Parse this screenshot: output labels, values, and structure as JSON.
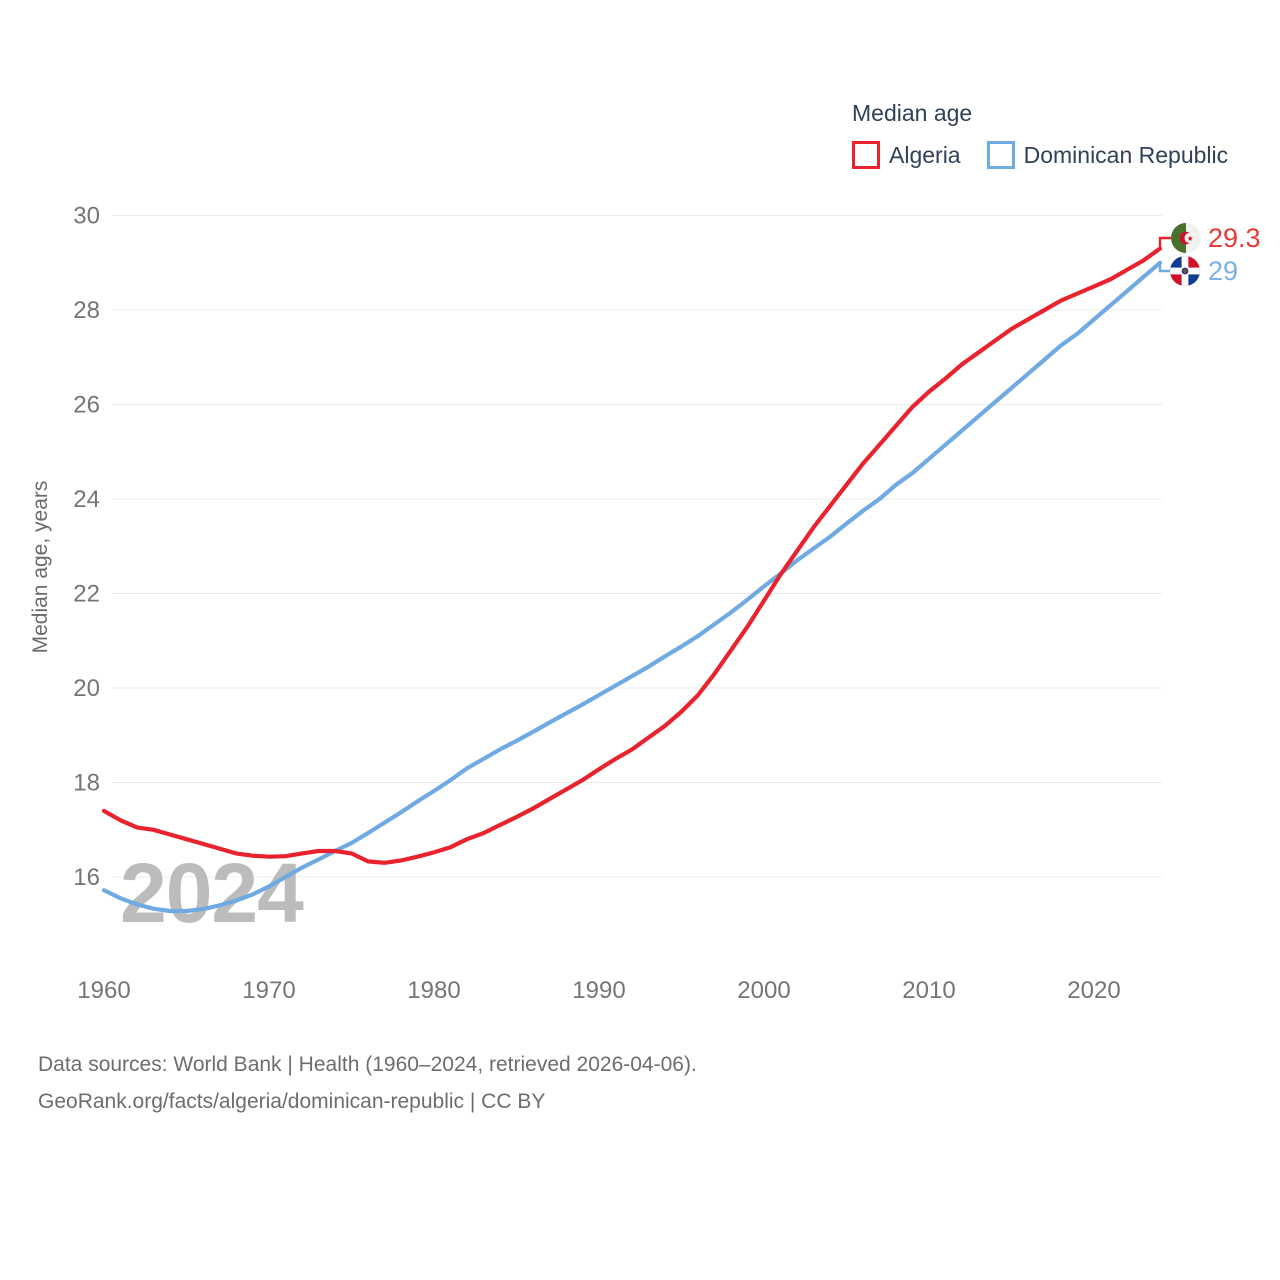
{
  "legend": {
    "title": "Median age",
    "items": [
      {
        "label": "Algeria",
        "color": "#e8232e"
      },
      {
        "label": "Dominican Republic",
        "color": "#70aae2"
      }
    ]
  },
  "footer": {
    "line1": "Data sources: World Bank | Health (1960–2024, retrieved 2026-04-06).",
    "line2": "GeoRank.org/facts/algeria/dominican-republic | CC BY"
  },
  "chart_data": {
    "type": "line",
    "title": "Median age",
    "ylabel": "Median age, years",
    "xlabel": "",
    "grid": "horizontal",
    "legend_position": "top-right",
    "watermark": "2024",
    "x_ticks": [
      1960,
      1970,
      1980,
      1990,
      2000,
      2010,
      2020
    ],
    "y_ticks": [
      16,
      18,
      20,
      22,
      24,
      26,
      28,
      30
    ],
    "xlim": [
      1960,
      2024
    ],
    "ylim": [
      15,
      30
    ],
    "x": [
      1960,
      1961,
      1962,
      1963,
      1964,
      1965,
      1966,
      1967,
      1968,
      1969,
      1970,
      1971,
      1972,
      1973,
      1974,
      1975,
      1976,
      1977,
      1978,
      1979,
      1980,
      1981,
      1982,
      1983,
      1984,
      1985,
      1986,
      1987,
      1988,
      1989,
      1990,
      1991,
      1992,
      1993,
      1994,
      1995,
      1996,
      1997,
      1998,
      1999,
      2000,
      2001,
      2002,
      2003,
      2004,
      2005,
      2006,
      2007,
      2008,
      2009,
      2010,
      2011,
      2012,
      2013,
      2014,
      2015,
      2016,
      2017,
      2018,
      2019,
      2020,
      2021,
      2022,
      2023,
      2024
    ],
    "series": [
      {
        "name": "Algeria",
        "color": "#e8232e",
        "end_label": "29.3",
        "values": [
          17.4,
          17.2,
          17.05,
          17.0,
          16.9,
          16.8,
          16.7,
          16.6,
          16.5,
          16.45,
          16.43,
          16.44,
          16.5,
          16.55,
          16.55,
          16.5,
          16.33,
          16.3,
          16.35,
          16.43,
          16.52,
          16.63,
          16.8,
          16.93,
          17.1,
          17.27,
          17.45,
          17.65,
          17.85,
          18.05,
          18.28,
          18.5,
          18.7,
          18.95,
          19.2,
          19.5,
          19.85,
          20.3,
          20.8,
          21.3,
          21.85,
          22.4,
          22.9,
          23.4,
          23.85,
          24.3,
          24.75,
          25.15,
          25.55,
          25.95,
          26.27,
          26.55,
          26.85,
          27.1,
          27.35,
          27.6,
          27.8,
          28.0,
          28.2,
          28.35,
          28.5,
          28.65,
          28.85,
          29.05,
          29.3
        ]
      },
      {
        "name": "Dominican Republic",
        "color": "#70aae2",
        "end_label": "29",
        "values": [
          15.72,
          15.55,
          15.42,
          15.33,
          15.28,
          15.28,
          15.32,
          15.4,
          15.5,
          15.63,
          15.8,
          16.0,
          16.2,
          16.37,
          16.55,
          16.72,
          16.93,
          17.15,
          17.37,
          17.6,
          17.82,
          18.05,
          18.3,
          18.5,
          18.7,
          18.88,
          19.07,
          19.27,
          19.46,
          19.65,
          19.85,
          20.05,
          20.25,
          20.45,
          20.67,
          20.88,
          21.1,
          21.35,
          21.6,
          21.87,
          22.15,
          22.42,
          22.7,
          22.95,
          23.2,
          23.48,
          23.75,
          24.0,
          24.3,
          24.55,
          24.85,
          25.15,
          25.45,
          25.75,
          26.05,
          26.35,
          26.65,
          26.95,
          27.25,
          27.5,
          27.8,
          28.1,
          28.4,
          28.7,
          29.0
        ]
      }
    ],
    "end_label_colors": [
      "#e53b35",
      "#79b1e8"
    ]
  }
}
